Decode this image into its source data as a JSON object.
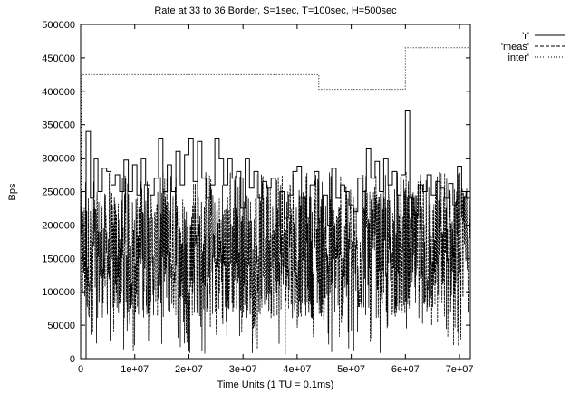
{
  "chart_data": {
    "type": "line",
    "title": "Rate at 33 to 36 Border, S=1sec, T=100sec, H=500sec",
    "xlabel": "Time Units (1 TU = 0.1ms)",
    "ylabel": "Bps",
    "xlim": [
      0,
      72000000
    ],
    "ylim": [
      0,
      500000
    ],
    "x_ticks": [
      0,
      10000000,
      20000000,
      30000000,
      40000000,
      50000000,
      60000000,
      70000000
    ],
    "x_tick_labels": [
      "0",
      "1e+07",
      "2e+07",
      "3e+07",
      "4e+07",
      "5e+07",
      "6e+07",
      "7e+07"
    ],
    "y_ticks": [
      0,
      50000,
      100000,
      150000,
      200000,
      250000,
      300000,
      350000,
      400000,
      450000,
      500000
    ],
    "y_tick_labels": [
      "0",
      "50000",
      "100000",
      "150000",
      "200000",
      "250000",
      "300000",
      "350000",
      "400000",
      "450000",
      "500000"
    ],
    "grid": false,
    "legend_position": "outside-top-right",
    "series": [
      {
        "name": "'r'",
        "style": "solid",
        "color": "#000000",
        "x": [
          0,
          1000000,
          1800000,
          2500000,
          3200000,
          4000000,
          4800000,
          5600000,
          6400000,
          7200000,
          8000000,
          8800000,
          9600000,
          10400000,
          11200000,
          12000000,
          12800000,
          13600000,
          14400000,
          15200000,
          16000000,
          16800000,
          17600000,
          18400000,
          19200000,
          20000000,
          20800000,
          21600000,
          22400000,
          23200000,
          24000000,
          24800000,
          25600000,
          26400000,
          27200000,
          28000000,
          28800000,
          29600000,
          30400000,
          31200000,
          32000000,
          32800000,
          33600000,
          34400000,
          35200000,
          36000000,
          36800000,
          37600000,
          38400000,
          39200000,
          40000000,
          40800000,
          41600000,
          42400000,
          43200000,
          44000000,
          44800000,
          45600000,
          46400000,
          47200000,
          48000000,
          48800000,
          49600000,
          50400000,
          51200000,
          52000000,
          52800000,
          53600000,
          54400000,
          55200000,
          56000000,
          56800000,
          57600000,
          58400000,
          59200000,
          60000000,
          60800000,
          61600000,
          62400000,
          63200000,
          64000000,
          64800000,
          65600000,
          66400000,
          67200000,
          68000000,
          68800000,
          69600000,
          70400000,
          71200000,
          72000000
        ],
        "values": [
          0,
          340000,
          240000,
          300000,
          250000,
          285000,
          280000,
          260000,
          275000,
          250000,
          297000,
          250000,
          290000,
          245000,
          300000,
          260000,
          245000,
          270000,
          330000,
          250000,
          290000,
          250000,
          310000,
          260000,
          305000,
          330000,
          265000,
          325000,
          270000,
          240000,
          260000,
          330000,
          300000,
          260000,
          300000,
          270000,
          280000,
          225000,
          300000,
          255000,
          280000,
          240000,
          265000,
          255000,
          270000,
          200000,
          250000,
          210000,
          245000,
          280000,
          288000,
          240000,
          210000,
          260000,
          280000,
          205000,
          245000,
          200000,
          285000,
          240000,
          260000,
          250000,
          230000,
          220000,
          270000,
          250000,
          315000,
          270000,
          295000,
          250000,
          300000,
          260000,
          280000,
          245000,
          275000,
          372000,
          240000,
          215000,
          260000,
          250000,
          275000,
          245000,
          265000,
          255000,
          240000,
          262000,
          230000,
          288000,
          250000,
          240000,
          250000
        ]
      },
      {
        "name": "'meas'",
        "style": "dashed",
        "color": "#000000",
        "amplitude_range": [
          5000,
          280000
        ],
        "typical_range": [
          60000,
          250000
        ]
      },
      {
        "name": "'inter'",
        "style": "dotted",
        "color": "#000000",
        "x": [
          0,
          200000,
          200000,
          44000000,
          44000000,
          60000000,
          60000000,
          72000000
        ],
        "values": [
          0,
          425000,
          425000,
          425000,
          403000,
          403000,
          465000,
          465000
        ]
      }
    ]
  }
}
